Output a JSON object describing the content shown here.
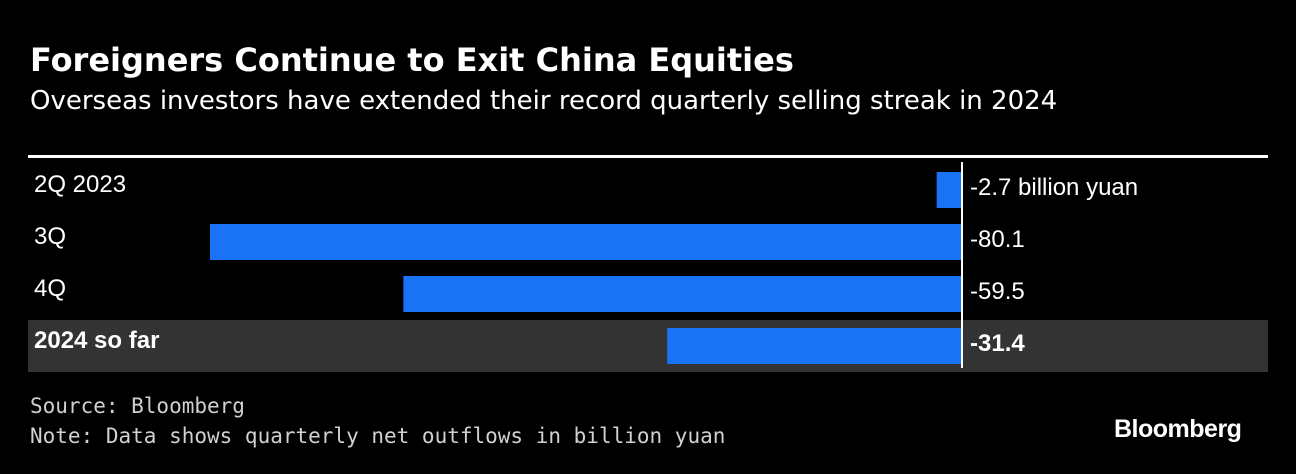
{
  "header": {
    "title": "Foreigners Continue to Exit China Equities",
    "subtitle": "Overseas investors have extended their record quarterly selling streak in 2024"
  },
  "footer": {
    "source": "Source: Bloomberg",
    "note": "Note: Data shows quarterly net outflows in billion yuan",
    "brand": "Bloomberg"
  },
  "colors": {
    "background": "#000000",
    "bar": "#1a73f5",
    "highlight_row": "#333333",
    "text": "#ffffff"
  },
  "chart_data": {
    "type": "bar",
    "orientation": "horizontal",
    "categories": [
      "2Q 2023",
      "3Q",
      "4Q",
      "2024 so far"
    ],
    "values": [
      -2.7,
      -80.1,
      -59.5,
      -31.4
    ],
    "value_labels": [
      "-2.7 billion yuan",
      "-80.1",
      "-59.5",
      "-31.4"
    ],
    "highlighted_category": "2024 so far",
    "xlim": [
      -80.1,
      0
    ],
    "grid": false,
    "legend": "none"
  }
}
